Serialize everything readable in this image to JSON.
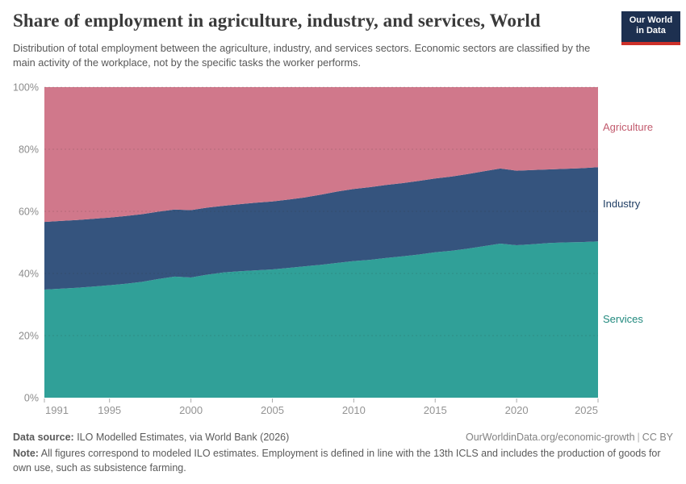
{
  "header": {
    "title": "Share of employment in agriculture, industry, and services, World",
    "subtitle": "Distribution of total employment between the agriculture, industry, and services sectors. Economic sectors are classified by the main activity of the workplace, not by the specific tasks the worker performs.",
    "logo": {
      "line1": "Our World",
      "line2": "in Data",
      "bg_color": "#1d3050",
      "stripe_color": "#cd3029"
    }
  },
  "chart_data": {
    "type": "area",
    "stacked": true,
    "title": "Share of employment in agriculture, industry, and services, World",
    "xlabel": "",
    "ylabel": "",
    "ylim": [
      0,
      100
    ],
    "grid": "dashed-horizontal",
    "legend_position": "right-edge-labels",
    "x": [
      1991,
      1992,
      1993,
      1994,
      1995,
      1996,
      1997,
      1998,
      1999,
      2000,
      2001,
      2002,
      2003,
      2004,
      2005,
      2006,
      2007,
      2008,
      2009,
      2010,
      2011,
      2012,
      2013,
      2014,
      2015,
      2016,
      2017,
      2018,
      2019,
      2020,
      2021,
      2022,
      2023,
      2024,
      2025
    ],
    "series": [
      {
        "name": "Services",
        "color": "#30a098",
        "label_color": "#21897e",
        "values": [
          34.8,
          35.1,
          35.4,
          35.8,
          36.2,
          36.7,
          37.3,
          38.2,
          39.0,
          38.7,
          39.6,
          40.3,
          40.7,
          41.0,
          41.3,
          41.8,
          42.3,
          42.8,
          43.4,
          44.0,
          44.4,
          45.0,
          45.5,
          46.1,
          46.8,
          47.3,
          48.0,
          48.8,
          49.6,
          49.1,
          49.4,
          49.8,
          50.0,
          50.1,
          50.3
        ]
      },
      {
        "name": "Industry",
        "color": "#35547e",
        "label_color": "#1f3e64",
        "values": [
          21.8,
          21.8,
          21.8,
          21.8,
          21.8,
          21.8,
          21.8,
          21.7,
          21.6,
          21.7,
          21.6,
          21.5,
          21.6,
          21.8,
          21.9,
          22.0,
          22.2,
          22.6,
          23.0,
          23.2,
          23.4,
          23.5,
          23.6,
          23.7,
          23.8,
          23.9,
          24.0,
          24.1,
          24.2,
          24.0,
          23.9,
          23.7,
          23.7,
          23.8,
          23.9
        ]
      },
      {
        "name": "Agriculture",
        "color": "#d0788b",
        "label_color": "#c25b6e",
        "values": [
          43.4,
          43.1,
          42.8,
          42.4,
          42.0,
          41.5,
          40.9,
          40.1,
          39.4,
          39.6,
          38.8,
          38.2,
          37.7,
          37.2,
          36.8,
          36.2,
          35.5,
          34.6,
          33.6,
          32.8,
          32.2,
          31.5,
          30.9,
          30.2,
          29.4,
          28.8,
          28.0,
          27.1,
          26.2,
          26.9,
          26.7,
          26.5,
          26.3,
          26.1,
          25.8
        ]
      }
    ],
    "yticks": [
      0,
      20,
      40,
      60,
      80,
      100
    ],
    "ytick_labels": [
      "0%",
      "20%",
      "40%",
      "60%",
      "80%",
      "100%"
    ],
    "xticks": [
      1991,
      1995,
      2000,
      2005,
      2010,
      2015,
      2020,
      2025
    ],
    "xtick_labels": [
      "1991",
      "1995",
      "2000",
      "2005",
      "2010",
      "2015",
      "2020",
      "2025"
    ]
  },
  "footer": {
    "datasource_label": "Data source:",
    "datasource_text": " ILO Modelled Estimates, via World Bank (2026)",
    "link": "OurWorldinData.org/economic-growth",
    "separator": "|",
    "license": "CC BY",
    "note_label": "Note:",
    "note_text": " All figures correspond to modeled ILO estimates. Employment is defined in line with the 13th ICLS and includes the production of goods for own use, such as subsistence farming."
  }
}
